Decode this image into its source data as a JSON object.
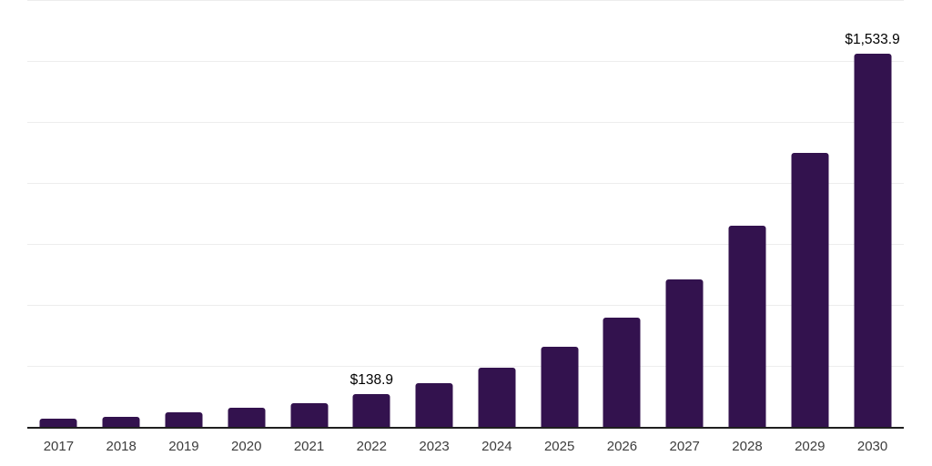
{
  "chart_data": {
    "type": "bar",
    "title": "",
    "xlabel": "",
    "ylabel": "",
    "categories": [
      "2017",
      "2018",
      "2019",
      "2020",
      "2021",
      "2022",
      "2023",
      "2024",
      "2025",
      "2026",
      "2027",
      "2028",
      "2029",
      "2030"
    ],
    "values": [
      36,
      46,
      62,
      81,
      101,
      138.9,
      182,
      245,
      334,
      451,
      610,
      830,
      1127,
      1533.9
    ],
    "value_labels": [
      null,
      null,
      null,
      null,
      null,
      "$138.9",
      null,
      null,
      null,
      null,
      null,
      null,
      null,
      "$1,533.9"
    ],
    "ylim": [
      0,
      1754
    ],
    "gridline_interval": 250,
    "grid": true,
    "legend": false,
    "colors": {
      "bar": "#33124E",
      "gridline": "#ededed",
      "baseline": "#1f1f1f",
      "axis_tick_label": "#3d3d3d",
      "value_label": "#000000",
      "background": "#ffffff"
    }
  }
}
